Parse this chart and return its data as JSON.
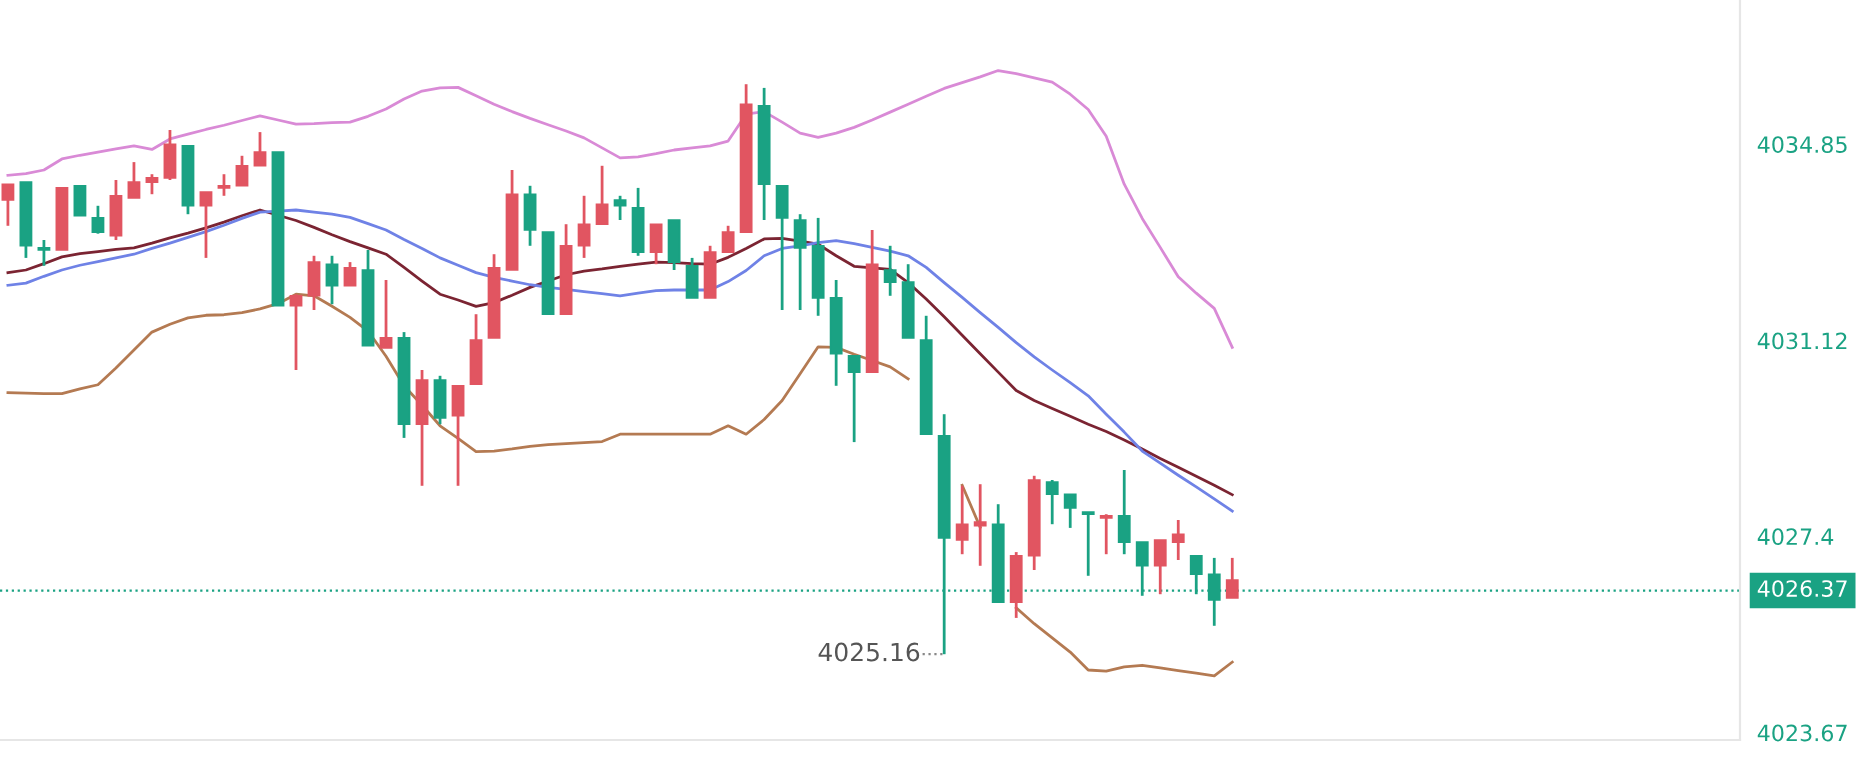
{
  "chart_data": {
    "type": "candlestick",
    "categories": [
      null,
      null,
      null,
      null,
      null,
      null,
      null,
      null,
      null,
      null,
      null,
      null,
      null,
      null,
      null,
      null,
      null,
      null,
      null,
      null,
      null,
      null,
      null,
      null,
      null,
      null,
      null,
      null,
      null,
      null,
      null,
      null,
      null,
      null,
      null,
      null,
      null,
      null,
      null,
      null,
      null,
      null,
      null,
      null,
      null,
      null,
      null,
      null,
      null,
      null,
      null,
      null,
      null,
      null,
      null,
      null,
      null,
      null,
      null,
      null,
      null,
      null,
      null,
      null,
      null,
      null,
      null,
      null,
      null
    ],
    "ohlc": [
      [
        4033.79,
        4034.09,
        4033.3,
        4034.09
      ],
      [
        4034.13,
        4034.13,
        4032.69,
        4032.92
      ],
      [
        4032.88,
        4033.03,
        4032.54,
        4032.84
      ],
      [
        4032.84,
        4034.02,
        4032.84,
        4034.02
      ],
      [
        4034.06,
        4034.06,
        4033.49,
        4033.49
      ],
      [
        4033.45,
        4033.68,
        4033.15,
        4033.18
      ],
      [
        4033.11,
        4034.17,
        4033.03,
        4033.87
      ],
      [
        4033.83,
        4034.51,
        4033.83,
        4034.13
      ],
      [
        4034.13,
        4034.28,
        4033.9,
        4034.21
      ],
      [
        4034.21,
        4035.12,
        4034.17,
        4034.85
      ],
      [
        4034.82,
        4034.82,
        4033.52,
        4033.68
      ],
      [
        4033.68,
        4033.94,
        4032.69,
        4033.94
      ],
      [
        4034.02,
        4034.28,
        4033.87,
        4034.06
      ],
      [
        4034.06,
        4034.63,
        4034.06,
        4034.44
      ],
      [
        4034.44,
        4035.08,
        4034.44,
        4034.7
      ],
      [
        4034.7,
        4034.7,
        4031.78,
        4031.78
      ],
      [
        4031.78,
        4032.0,
        4030.56,
        4031.97
      ],
      [
        4031.97,
        4032.73,
        4031.7,
        4032.61
      ],
      [
        4032.57,
        4032.73,
        4031.81,
        4032.16
      ],
      [
        4032.16,
        4032.61,
        4032.16,
        4032.5
      ],
      [
        4032.46,
        4032.84,
        4031.02,
        4031.02
      ],
      [
        4030.98,
        4032.27,
        4030.98,
        4031.17
      ],
      [
        4031.17,
        4031.28,
        4029.27,
        4029.53
      ],
      [
        4029.53,
        4030.56,
        4028.36,
        4030.37
      ],
      [
        4030.37,
        4030.45,
        4029.53,
        4029.65
      ],
      [
        4029.69,
        4030.26,
        4028.36,
        4030.26
      ],
      [
        4030.29,
        4031.62,
        4030.29,
        4031.13
      ],
      [
        4031.17,
        4032.76,
        4031.17,
        4032.5
      ],
      [
        4032.46,
        4034.36,
        4032.46,
        4033.9
      ],
      [
        4033.9,
        4034.06,
        4032.92,
        4033.22
      ],
      [
        4033.18,
        4033.18,
        4031.62,
        4031.62
      ],
      [
        4031.62,
        4033.33,
        4031.62,
        4032.92
      ],
      [
        4032.92,
        4033.87,
        4032.69,
        4033.33
      ],
      [
        4033.33,
        4034.44,
        4033.33,
        4033.71
      ],
      [
        4033.79,
        4033.87,
        4033.41,
        4033.68
      ],
      [
        4033.64,
        4034.02,
        4032.73,
        4032.8
      ],
      [
        4032.8,
        4033.33,
        4032.57,
        4033.33
      ],
      [
        4033.41,
        4033.41,
        4032.46,
        4032.61
      ],
      [
        4032.54,
        4032.69,
        4031.93,
        4031.93
      ],
      [
        4031.93,
        4032.92,
        4031.93,
        4032.8
      ],
      [
        4032.8,
        4033.3,
        4032.8,
        4033.18
      ],
      [
        4033.18,
        4035.99,
        4033.18,
        4035.61
      ],
      [
        4035.58,
        4035.92,
        4033.41,
        4034.09
      ],
      [
        4034.06,
        4034.06,
        4031.7,
        4033.45
      ],
      [
        4033.41,
        4033.52,
        4031.7,
        4032.88
      ],
      [
        4032.92,
        4033.45,
        4031.59,
        4031.93
      ],
      [
        4031.93,
        4032.27,
        4030.26,
        4030.87
      ],
      [
        4030.83,
        4030.83,
        4029.19,
        4030.52
      ],
      [
        4030.52,
        4033.22,
        4030.52,
        4032.57
      ],
      [
        4032.46,
        4032.92,
        4031.97,
        4032.23
      ],
      [
        4032.23,
        4032.57,
        4031.17,
        4031.17
      ],
      [
        4031.13,
        4031.59,
        4029.34,
        4029.34
      ],
      [
        4029.31,
        4029.72,
        4025.16,
        4027.37
      ],
      [
        4027.33,
        4028.36,
        4027.06,
        4027.63
      ],
      [
        4027.6,
        4028.39,
        4026.84,
        4027.67
      ],
      [
        4027.63,
        4028.01,
        4026.15,
        4026.15
      ],
      [
        4026.15,
        4027.1,
        4025.85,
        4027.03
      ],
      [
        4027.03,
        4028.55,
        4026.76,
        4028.47
      ],
      [
        4028.43,
        4028.47,
        4027.63,
        4028.2
      ],
      [
        4028.2,
        4028.2,
        4027.56,
        4027.94
      ],
      [
        4027.86,
        4027.86,
        4026.65,
        4027.82
      ],
      [
        4027.75,
        4027.82,
        4027.06,
        4027.79
      ],
      [
        4027.79,
        4028.66,
        4027.06,
        4027.29
      ],
      [
        4027.29,
        4027.29,
        4026.27,
        4026.84
      ],
      [
        4026.84,
        4027.33,
        4026.3,
        4027.33
      ],
      [
        4027.29,
        4027.71,
        4026.95,
        4027.44
      ],
      [
        4027.03,
        4027.03,
        4026.3,
        4026.68
      ],
      [
        4026.68,
        4026.99,
        4025.7,
        4026.19
      ],
      [
        4026.23,
        4026.99,
        4026.23,
        4026.57
      ]
    ],
    "colors": [
      "#e15561",
      "#1aa283",
      "#1aa283",
      "#e15561",
      "#1aa283",
      "#1aa283",
      "#e15561",
      "#e15561",
      "#e15561",
      "#e15561",
      "#1aa283",
      "#e15561",
      "#e15561",
      "#e15561",
      "#e15561",
      "#1aa283",
      "#e15561",
      "#e15561",
      "#1aa283",
      "#e15561",
      "#1aa283",
      "#e15561",
      "#1aa283",
      "#e15561",
      "#1aa283",
      "#e15561",
      "#e15561",
      "#e15561",
      "#e15561",
      "#1aa283",
      "#1aa283",
      "#e15561",
      "#e15561",
      "#e15561",
      "#1aa283",
      "#1aa283",
      "#e15561",
      "#1aa283",
      "#1aa283",
      "#e15561",
      "#e15561",
      "#e15561",
      "#1aa283",
      "#1aa283",
      "#1aa283",
      "#1aa283",
      "#1aa283",
      "#1aa283",
      "#e15561",
      "#1aa283",
      "#1aa283",
      "#1aa283",
      "#1aa283",
      "#e15561",
      "#e15561",
      "#1aa283",
      "#e15561",
      "#e15561",
      "#1aa283",
      "#1aa283",
      "#1aa283",
      "#e15561",
      "#1aa283",
      "#1aa283",
      "#e15561",
      "#e15561",
      "#1aa283",
      "#1aa283",
      "#e15561"
    ],
    "series": [
      {
        "type": "line",
        "color": "#d98ad6",
        "values": [
          4034.26,
          4034.29,
          4034.36,
          4034.57,
          4034.64,
          4034.7,
          4034.76,
          4034.82,
          4034.75,
          4034.95,
          4035.04,
          4035.13,
          4035.21,
          4035.3,
          4035.39,
          4035.31,
          4035.23,
          4035.24,
          4035.26,
          4035.27,
          4035.38,
          4035.52,
          4035.71,
          4035.86,
          4035.92,
          4035.93,
          4035.77,
          4035.61,
          4035.47,
          4035.34,
          4035.22,
          4035.1,
          4034.97,
          4034.78,
          4034.59,
          4034.61,
          4034.67,
          4034.74,
          4034.78,
          4034.82,
          4034.91,
          4035.42,
          4035.47,
          4035.27,
          4035.06,
          4034.98,
          4035.06,
          4035.17,
          4035.31,
          4035.46,
          4035.61,
          4035.76,
          4035.91,
          4036.02,
          4036.13,
          4036.25,
          4036.19,
          4036.11,
          4036.03,
          4035.8,
          4035.51,
          4035.0,
          4034.09,
          4033.44,
          4032.89,
          4032.33,
          4032.02,
          4031.73,
          4030.99
        ]
      },
      {
        "type": "line",
        "color": "#7b2432",
        "values": [
          4032.41,
          4032.46,
          4032.58,
          4032.71,
          4032.77,
          4032.81,
          4032.85,
          4032.88,
          4032.97,
          4033.07,
          4033.16,
          4033.26,
          4033.37,
          4033.49,
          4033.6,
          4033.5,
          4033.4,
          4033.27,
          4033.13,
          4033.0,
          4032.88,
          4032.76,
          4032.51,
          4032.25,
          4032.0,
          4031.89,
          4031.77,
          4031.84,
          4031.98,
          4032.13,
          4032.25,
          4032.37,
          4032.44,
          4032.48,
          4032.53,
          4032.57,
          4032.61,
          4032.6,
          4032.58,
          4032.57,
          4032.7,
          4032.87,
          4033.05,
          4033.06,
          4033.01,
          4032.95,
          4032.73,
          4032.53,
          4032.5,
          4032.47,
          4032.22,
          4031.91,
          4031.57,
          4031.22,
          4030.87,
          4030.52,
          4030.17,
          4029.98,
          4029.83,
          4029.68,
          4029.53,
          4029.39,
          4029.23,
          4029.06,
          4028.88,
          4028.71,
          4028.54,
          4028.37,
          4028.19
        ]
      },
      {
        "type": "line",
        "color": "#6f82e6",
        "values": [
          4032.17,
          4032.21,
          4032.34,
          4032.46,
          4032.55,
          4032.62,
          4032.69,
          4032.76,
          4032.87,
          4032.97,
          4033.08,
          4033.19,
          4033.31,
          4033.44,
          4033.56,
          4033.58,
          4033.6,
          4033.56,
          4033.52,
          4033.46,
          4033.34,
          4033.22,
          4033.04,
          4032.87,
          4032.69,
          4032.55,
          4032.41,
          4032.32,
          4032.25,
          4032.18,
          4032.13,
          4032.09,
          4032.05,
          4032.01,
          4031.97,
          4032.02,
          4032.07,
          4032.08,
          4032.08,
          4032.08,
          4032.24,
          4032.45,
          4032.73,
          4032.87,
          4032.92,
          4032.98,
          4033.02,
          4032.96,
          4032.89,
          4032.82,
          4032.73,
          4032.51,
          4032.22,
          4031.94,
          4031.65,
          4031.37,
          4031.08,
          4030.81,
          4030.56,
          4030.32,
          4030.07,
          4029.72,
          4029.38,
          4029.02,
          4028.79,
          4028.56,
          4028.34,
          4028.11,
          4027.88
        ]
      },
      {
        "type": "line",
        "color": "#b47a52",
        "values": [
          4030.13,
          4030.12,
          4030.11,
          4030.11,
          4030.2,
          4030.28,
          4030.6,
          4030.94,
          4031.28,
          4031.43,
          4031.55,
          4031.6,
          4031.61,
          4031.65,
          4031.72,
          4031.82,
          4032.0,
          4031.97,
          4031.77,
          4031.56,
          4031.3,
          4030.82,
          4030.26,
          4029.89,
          4029.5,
          4029.26,
          4029.01,
          4029.02,
          4029.06,
          4029.11,
          4029.14,
          4029.16,
          4029.18,
          4029.2,
          4029.34,
          4029.34,
          4029.34,
          4029.34,
          4029.34,
          4029.34,
          4029.5,
          4029.34,
          4029.62,
          4029.98,
          4030.49,
          4031.0,
          4030.99,
          4030.86,
          4030.74,
          4030.62,
          4030.39,
          null,
          null,
          4028.37,
          4027.57,
          null,
          4026.04,
          4025.74,
          4025.47,
          4025.2,
          4024.86,
          4024.84,
          4024.92,
          4024.95,
          4024.9,
          4024.85,
          4024.8,
          4024.75,
          4025.01
        ]
      }
    ],
    "ylim": [
      4023.53,
      4037.59
    ],
    "yticks": [
      4034.85,
      4031.12,
      4027.4,
      4023.67
    ],
    "ref_lines": [
      {
        "axis": "y",
        "value": 4026.37,
        "label": "4026.37",
        "color": "#1aa283",
        "line_style": "dotted"
      }
    ],
    "annotations": [
      "4025.16"
    ],
    "grid": false
  }
}
